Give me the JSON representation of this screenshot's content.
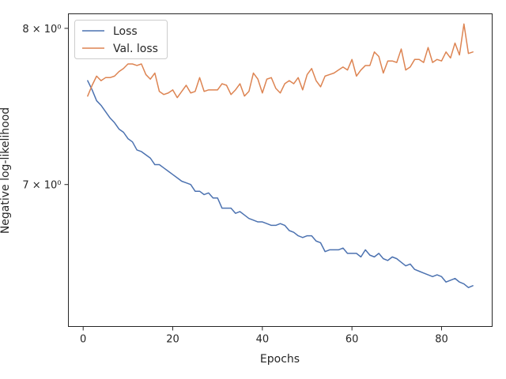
{
  "chart_data": {
    "type": "line",
    "title": "",
    "xlabel": "Epochs",
    "ylabel": "Negative log-likelihood",
    "xlim": [
      -3.3,
      91.3
    ],
    "ylim": [
      6.2,
      8.1
    ],
    "yscale": "log",
    "xticks": [
      0,
      20,
      40,
      60,
      80
    ],
    "xtick_labels": [
      "0",
      "20",
      "40",
      "60",
      "80"
    ],
    "yticks": [
      7,
      8
    ],
    "ytick_labels": [
      "7 × 10⁰",
      "8 × 10⁰"
    ],
    "grid": false,
    "legend_position": "top-left",
    "x": [
      1,
      2,
      3,
      4,
      5,
      6,
      7,
      8,
      9,
      10,
      11,
      12,
      13,
      14,
      15,
      16,
      17,
      18,
      19,
      20,
      21,
      22,
      23,
      24,
      25,
      26,
      27,
      28,
      29,
      30,
      31,
      32,
      33,
      34,
      35,
      36,
      37,
      38,
      39,
      40,
      41,
      42,
      43,
      44,
      45,
      46,
      47,
      48,
      49,
      50,
      51,
      52,
      53,
      54,
      55,
      56,
      57,
      58,
      59,
      60,
      61,
      62,
      63,
      64,
      65,
      66,
      67,
      68,
      69,
      70,
      71,
      72,
      73,
      74,
      75,
      76,
      77,
      78,
      79,
      80,
      81,
      82,
      83,
      84,
      85,
      86,
      87
    ],
    "series": [
      {
        "name": "Loss",
        "color": "#4c72b0",
        "values": [
          7.65,
          7.59,
          7.52,
          7.49,
          7.45,
          7.41,
          7.38,
          7.34,
          7.32,
          7.28,
          7.26,
          7.21,
          7.2,
          7.18,
          7.16,
          7.12,
          7.12,
          7.1,
          7.08,
          7.06,
          7.04,
          7.02,
          7.01,
          7.0,
          6.96,
          6.96,
          6.94,
          6.95,
          6.92,
          6.92,
          6.86,
          6.86,
          6.86,
          6.83,
          6.84,
          6.82,
          6.8,
          6.79,
          6.78,
          6.78,
          6.77,
          6.76,
          6.76,
          6.77,
          6.76,
          6.73,
          6.72,
          6.7,
          6.69,
          6.7,
          6.7,
          6.67,
          6.66,
          6.61,
          6.62,
          6.62,
          6.62,
          6.63,
          6.6,
          6.6,
          6.6,
          6.58,
          6.62,
          6.59,
          6.58,
          6.6,
          6.57,
          6.56,
          6.58,
          6.57,
          6.55,
          6.53,
          6.54,
          6.51,
          6.5,
          6.49,
          6.48,
          6.47,
          6.48,
          6.47,
          6.44,
          6.45,
          6.46,
          6.44,
          6.43,
          6.41,
          6.42
        ]
      },
      {
        "name": "Val. loss",
        "color": "#dd8452",
        "values": [
          7.55,
          7.62,
          7.68,
          7.65,
          7.67,
          7.67,
          7.68,
          7.71,
          7.73,
          7.76,
          7.76,
          7.75,
          7.76,
          7.69,
          7.66,
          7.7,
          7.58,
          7.56,
          7.57,
          7.59,
          7.54,
          7.58,
          7.62,
          7.57,
          7.58,
          7.67,
          7.58,
          7.59,
          7.59,
          7.59,
          7.63,
          7.62,
          7.56,
          7.59,
          7.63,
          7.55,
          7.58,
          7.7,
          7.66,
          7.57,
          7.66,
          7.67,
          7.6,
          7.57,
          7.63,
          7.65,
          7.63,
          7.67,
          7.59,
          7.69,
          7.73,
          7.65,
          7.61,
          7.68,
          7.69,
          7.7,
          7.72,
          7.74,
          7.72,
          7.79,
          7.68,
          7.72,
          7.75,
          7.75,
          7.84,
          7.81,
          7.7,
          7.78,
          7.78,
          7.77,
          7.86,
          7.72,
          7.74,
          7.79,
          7.79,
          7.77,
          7.87,
          7.77,
          7.79,
          7.78,
          7.84,
          7.8,
          7.9,
          7.82,
          8.03,
          7.83,
          7.84
        ]
      }
    ]
  }
}
